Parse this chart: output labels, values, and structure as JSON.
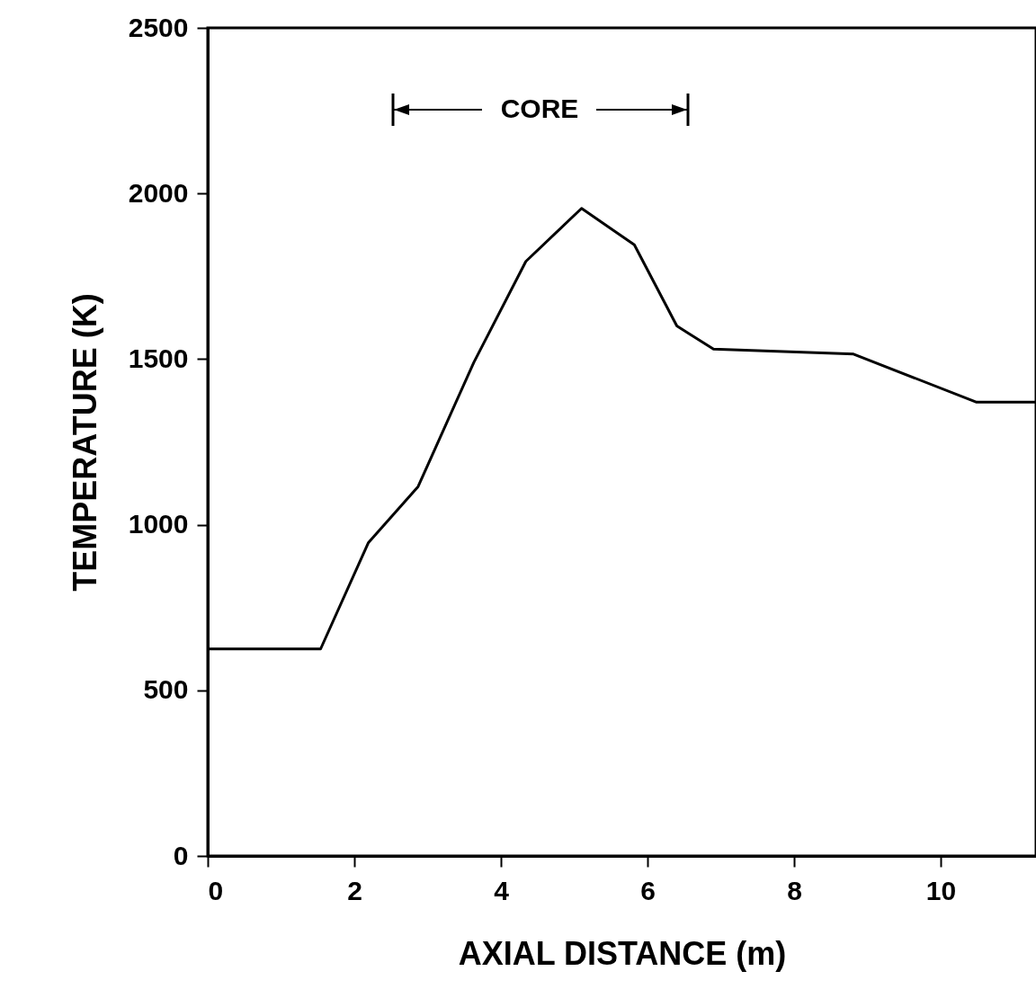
{
  "chart_data": {
    "type": "line",
    "xlabel": "AXIAL DISTANCE (m)",
    "ylabel": "TEMPERATURE (K)",
    "x": [
      0,
      1.54,
      2.19,
      2.87,
      3.63,
      4.34,
      5.1,
      5.82,
      6.4,
      6.9,
      8.81,
      10.49,
      11.3
    ],
    "series": [
      {
        "color": "#000000",
        "values": [
          625,
          625,
          945,
          1115,
          1490,
          1795,
          1955,
          1845,
          1600,
          1530,
          1515,
          1370,
          1370
        ]
      }
    ],
    "xlim": [
      0,
      11.3
    ],
    "xticks": [
      0,
      2,
      4,
      6,
      8,
      10
    ],
    "ylim": [
      0,
      2500
    ],
    "yticks": [
      0,
      500,
      1000,
      1500,
      2000,
      2500
    ],
    "annotations": [
      "CORE"
    ],
    "grid": false,
    "marker": "none",
    "line_style": "solid"
  }
}
